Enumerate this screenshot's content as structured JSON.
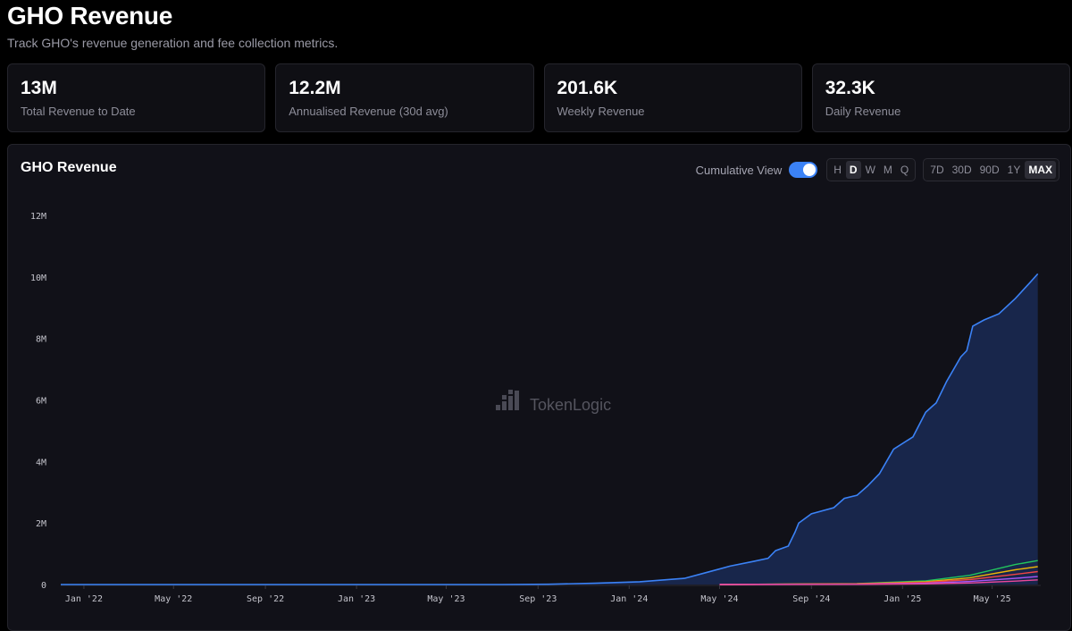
{
  "header": {
    "title": "GHO Revenue",
    "subtitle": "Track GHO's revenue generation and fee collection metrics."
  },
  "stats": [
    {
      "value": "13M",
      "label": "Total Revenue to Date"
    },
    {
      "value": "12.2M",
      "label": "Annualised Revenue (30d avg)"
    },
    {
      "value": "201.6K",
      "label": "Weekly Revenue"
    },
    {
      "value": "32.3K",
      "label": "Daily Revenue"
    }
  ],
  "chart_panel": {
    "title": "GHO Revenue",
    "cumulative_label": "Cumulative View",
    "cumulative_on": true,
    "granularity": [
      "H",
      "D",
      "W",
      "M",
      "Q"
    ],
    "granularity_active": "D",
    "ranges": [
      "7D",
      "30D",
      "90D",
      "1Y",
      "MAX"
    ],
    "range_active": "MAX",
    "watermark": "TokenLogic"
  },
  "chart_data": {
    "type": "area",
    "title": "GHO Revenue",
    "xlabel": "",
    "ylabel": "",
    "x_ticks": [
      "Jan '22",
      "May '22",
      "Sep '22",
      "Jan '23",
      "May '23",
      "Sep '23",
      "Jan '24",
      "May '24",
      "Sep '24",
      "Jan '25",
      "May '25"
    ],
    "y_ticks": [
      "0",
      "2M",
      "4M",
      "6M",
      "8M",
      "10M",
      "12M"
    ],
    "ylim": [
      0,
      12000000
    ],
    "xlim": [
      "2021-12-01",
      "2025-07-05"
    ],
    "grid": false,
    "legend": "none",
    "colors": {
      "main": "#3b82f6",
      "main_fill": "#1a2a55",
      "series2": "#22c55e",
      "series3": "#eab308",
      "series4": "#ef4444",
      "series5": "#a855f7",
      "series6": "#ec4899"
    },
    "series": [
      {
        "color": "#3b82f6",
        "points": [
          [
            "2021-12-01",
            0
          ],
          [
            "2023-07-15",
            0
          ],
          [
            "2023-09-15",
            10000
          ],
          [
            "2023-11-15",
            40000
          ],
          [
            "2024-01-15",
            90000
          ],
          [
            "2024-03-15",
            200000
          ],
          [
            "2024-04-15",
            400000
          ],
          [
            "2024-05-15",
            600000
          ],
          [
            "2024-06-15",
            750000
          ],
          [
            "2024-07-05",
            850000
          ],
          [
            "2024-07-15",
            1100000
          ],
          [
            "2024-08-01",
            1250000
          ],
          [
            "2024-08-10",
            1700000
          ],
          [
            "2024-08-15",
            2000000
          ],
          [
            "2024-09-01",
            2300000
          ],
          [
            "2024-10-01",
            2500000
          ],
          [
            "2024-10-15",
            2800000
          ],
          [
            "2024-11-01",
            2900000
          ],
          [
            "2024-11-15",
            3200000
          ],
          [
            "2024-12-01",
            3600000
          ],
          [
            "2024-12-20",
            4400000
          ],
          [
            "2025-01-15",
            4800000
          ],
          [
            "2025-02-01",
            5600000
          ],
          [
            "2025-02-10",
            5800000
          ],
          [
            "2025-02-15",
            5900000
          ],
          [
            "2025-03-01",
            6600000
          ],
          [
            "2025-03-20",
            7400000
          ],
          [
            "2025-03-28",
            7600000
          ],
          [
            "2025-04-05",
            8400000
          ],
          [
            "2025-04-20",
            8600000
          ],
          [
            "2025-05-10",
            8800000
          ],
          [
            "2025-06-01",
            9300000
          ],
          [
            "2025-06-20",
            9800000
          ],
          [
            "2025-07-01",
            10100000
          ]
        ]
      },
      {
        "color": "#22c55e",
        "points": [
          [
            "2024-05-01",
            0
          ],
          [
            "2024-11-01",
            30000
          ],
          [
            "2025-02-01",
            120000
          ],
          [
            "2025-04-01",
            300000
          ],
          [
            "2025-06-01",
            650000
          ],
          [
            "2025-07-01",
            780000
          ]
        ]
      },
      {
        "color": "#eab308",
        "points": [
          [
            "2024-05-01",
            0
          ],
          [
            "2024-11-01",
            25000
          ],
          [
            "2025-02-01",
            90000
          ],
          [
            "2025-04-01",
            220000
          ],
          [
            "2025-06-01",
            480000
          ],
          [
            "2025-07-01",
            580000
          ]
        ]
      },
      {
        "color": "#ef4444",
        "points": [
          [
            "2024-05-01",
            0
          ],
          [
            "2024-11-01",
            20000
          ],
          [
            "2025-02-01",
            70000
          ],
          [
            "2025-04-01",
            160000
          ],
          [
            "2025-06-01",
            330000
          ],
          [
            "2025-07-01",
            420000
          ]
        ]
      },
      {
        "color": "#a855f7",
        "points": [
          [
            "2024-05-01",
            0
          ],
          [
            "2024-11-01",
            10000
          ],
          [
            "2025-02-01",
            40000
          ],
          [
            "2025-04-01",
            100000
          ],
          [
            "2025-06-01",
            200000
          ],
          [
            "2025-07-01",
            260000
          ]
        ]
      },
      {
        "color": "#ec4899",
        "points": [
          [
            "2024-05-01",
            0
          ],
          [
            "2024-11-01",
            5000
          ],
          [
            "2025-02-01",
            20000
          ],
          [
            "2025-04-01",
            50000
          ],
          [
            "2025-06-01",
            110000
          ],
          [
            "2025-07-01",
            150000
          ]
        ]
      }
    ]
  }
}
